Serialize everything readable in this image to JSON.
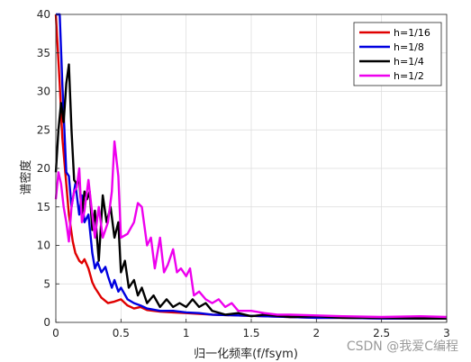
{
  "chart_data": {
    "type": "line",
    "title": "",
    "xlabel": "归一化频率(f/fsym)",
    "ylabel": "谱密度",
    "xlim": [
      0,
      3
    ],
    "ylim": [
      0,
      40
    ],
    "xticks": [
      "0",
      "0.5",
      "1",
      "1.5",
      "2",
      "2.5",
      "3"
    ],
    "yticks": [
      "0",
      "5",
      "10",
      "15",
      "20",
      "25",
      "30",
      "35",
      "40"
    ],
    "grid": true,
    "legend_position": "top-right",
    "series": [
      {
        "name": "h=1/16",
        "color": "#e00000",
        "x": [
          0,
          0.03,
          0.05,
          0.08,
          0.1,
          0.13,
          0.15,
          0.18,
          0.2,
          0.22,
          0.25,
          0.28,
          0.3,
          0.35,
          0.4,
          0.45,
          0.5,
          0.55,
          0.6,
          0.65,
          0.7,
          0.8,
          0.9,
          1.0,
          1.1,
          1.2,
          1.4,
          1.6,
          1.8,
          2.0,
          2.2,
          2.5,
          2.8,
          3.0
        ],
        "values": [
          40,
          31,
          24,
          18,
          14,
          10.5,
          9,
          8,
          7.7,
          8.2,
          7,
          5.2,
          4.5,
          3.2,
          2.5,
          2.7,
          3.0,
          2.2,
          1.8,
          2.0,
          1.6,
          1.4,
          1.3,
          1.2,
          1.1,
          1.0,
          0.9,
          0.8,
          0.7,
          0.6,
          0.6,
          0.5,
          0.5,
          0.5
        ]
      },
      {
        "name": "h=1/8",
        "color": "#0000e0",
        "x": [
          0,
          0.03,
          0.05,
          0.08,
          0.1,
          0.12,
          0.15,
          0.18,
          0.2,
          0.22,
          0.25,
          0.28,
          0.3,
          0.32,
          0.35,
          0.38,
          0.4,
          0.43,
          0.45,
          0.48,
          0.5,
          0.55,
          0.6,
          0.65,
          0.7,
          0.8,
          0.9,
          1.0,
          1.1,
          1.2,
          1.4,
          1.6,
          1.8,
          2.0,
          2.2,
          2.5,
          2.8,
          3.0
        ],
        "values": [
          40,
          40,
          31,
          19.5,
          19,
          15,
          18,
          14,
          16.5,
          13,
          14,
          9,
          7,
          7.8,
          6.5,
          7.2,
          6.0,
          4.5,
          5.5,
          4.0,
          4.5,
          3.0,
          2.5,
          2.2,
          1.8,
          1.5,
          1.5,
          1.3,
          1.2,
          1.0,
          0.9,
          0.8,
          0.7,
          0.6,
          0.6,
          0.5,
          0.5,
          0.5
        ]
      },
      {
        "name": "h=1/4",
        "color": "#000000",
        "x": [
          0,
          0.02,
          0.04,
          0.06,
          0.08,
          0.1,
          0.12,
          0.14,
          0.16,
          0.18,
          0.2,
          0.22,
          0.24,
          0.26,
          0.28,
          0.3,
          0.33,
          0.36,
          0.39,
          0.42,
          0.45,
          0.48,
          0.5,
          0.53,
          0.56,
          0.6,
          0.63,
          0.66,
          0.7,
          0.75,
          0.8,
          0.85,
          0.9,
          0.95,
          1.0,
          1.05,
          1.1,
          1.15,
          1.2,
          1.3,
          1.4,
          1.5,
          1.6,
          1.8,
          2.0,
          2.2,
          2.5,
          2.8,
          3.0
        ],
        "values": [
          19.5,
          25,
          28.5,
          26,
          31,
          33.5,
          25,
          18.5,
          18,
          18.5,
          14,
          17,
          16,
          17,
          12,
          14.5,
          8,
          16.5,
          13,
          15,
          11,
          13,
          6.5,
          8,
          4.5,
          5.5,
          3.5,
          4.5,
          2.5,
          3.5,
          2.0,
          3.0,
          2.0,
          2.5,
          2.0,
          3.0,
          2.0,
          2.5,
          1.5,
          1.0,
          1.2,
          0.8,
          1.0,
          0.7,
          0.8,
          0.6,
          0.6,
          0.5,
          0.5
        ]
      },
      {
        "name": "h=1/2",
        "color": "#ee00ee",
        "x": [
          0,
          0.02,
          0.04,
          0.06,
          0.08,
          0.1,
          0.12,
          0.14,
          0.16,
          0.18,
          0.2,
          0.22,
          0.25,
          0.28,
          0.3,
          0.33,
          0.36,
          0.4,
          0.43,
          0.45,
          0.48,
          0.5,
          0.55,
          0.6,
          0.63,
          0.66,
          0.7,
          0.73,
          0.76,
          0.8,
          0.83,
          0.86,
          0.9,
          0.93,
          0.96,
          1.0,
          1.03,
          1.06,
          1.1,
          1.15,
          1.2,
          1.25,
          1.3,
          1.35,
          1.4,
          1.5,
          1.6,
          1.7,
          1.8,
          2.0,
          2.2,
          2.5,
          2.8,
          3.0
        ],
        "values": [
          16,
          19.5,
          18,
          15,
          13,
          10.5,
          15,
          17,
          17.5,
          20,
          13,
          14.5,
          18.5,
          14,
          11,
          15,
          11,
          13,
          17,
          23.5,
          19,
          11,
          11.5,
          13,
          15.5,
          15,
          10,
          11,
          7,
          11,
          6.5,
          7.5,
          9.5,
          6.5,
          7,
          6,
          7,
          3.5,
          4,
          3,
          2.5,
          3,
          2,
          2.5,
          1.5,
          1.5,
          1.2,
          1.0,
          1.0,
          0.9,
          0.8,
          0.7,
          0.8,
          0.7
        ]
      }
    ]
  },
  "watermark": "CSDN @我爱C编程"
}
